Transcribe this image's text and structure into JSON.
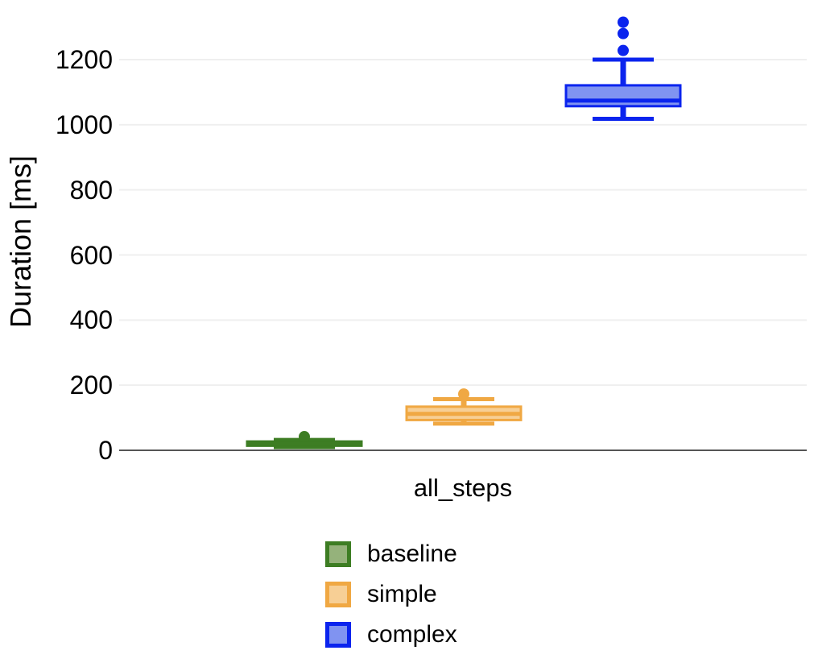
{
  "figure": {
    "background": "#ffffff",
    "axis_color": "#555555",
    "gridline_color": "#efefef",
    "text_color": "#000000"
  },
  "chart_data": {
    "type": "boxplot",
    "title": "",
    "ylabel": "Duration [ms]",
    "xlabel": "",
    "categories": [
      "all_steps"
    ],
    "yticks": [
      0,
      200,
      400,
      600,
      800,
      1000,
      1200
    ],
    "ylim": [
      0,
      1385
    ],
    "grid": "horizontal",
    "legend_position": "bottom-left",
    "legend_labels": [
      "baseline",
      "simple",
      "complex"
    ],
    "series": [
      {
        "name": "baseline",
        "stroke": "#3d7d23",
        "fill": "#95b27b",
        "whisker_low": 10,
        "q1": 14,
        "median": 19,
        "q3": 27,
        "whisker_high": 32,
        "outliers": [
          42
        ]
      },
      {
        "name": "simple",
        "stroke": "#f0a843",
        "fill": "#f7cf95",
        "whisker_low": 82,
        "q1": 93,
        "median": 112,
        "q3": 134,
        "whisker_high": 157,
        "outliers": [
          173
        ]
      },
      {
        "name": "complex",
        "stroke": "#0b24ee",
        "fill": "#8093f1",
        "whisker_low": 1018,
        "q1": 1057,
        "median": 1074,
        "q3": 1121,
        "whisker_high": 1200,
        "outliers": [
          1228,
          1280,
          1315
        ]
      }
    ]
  }
}
